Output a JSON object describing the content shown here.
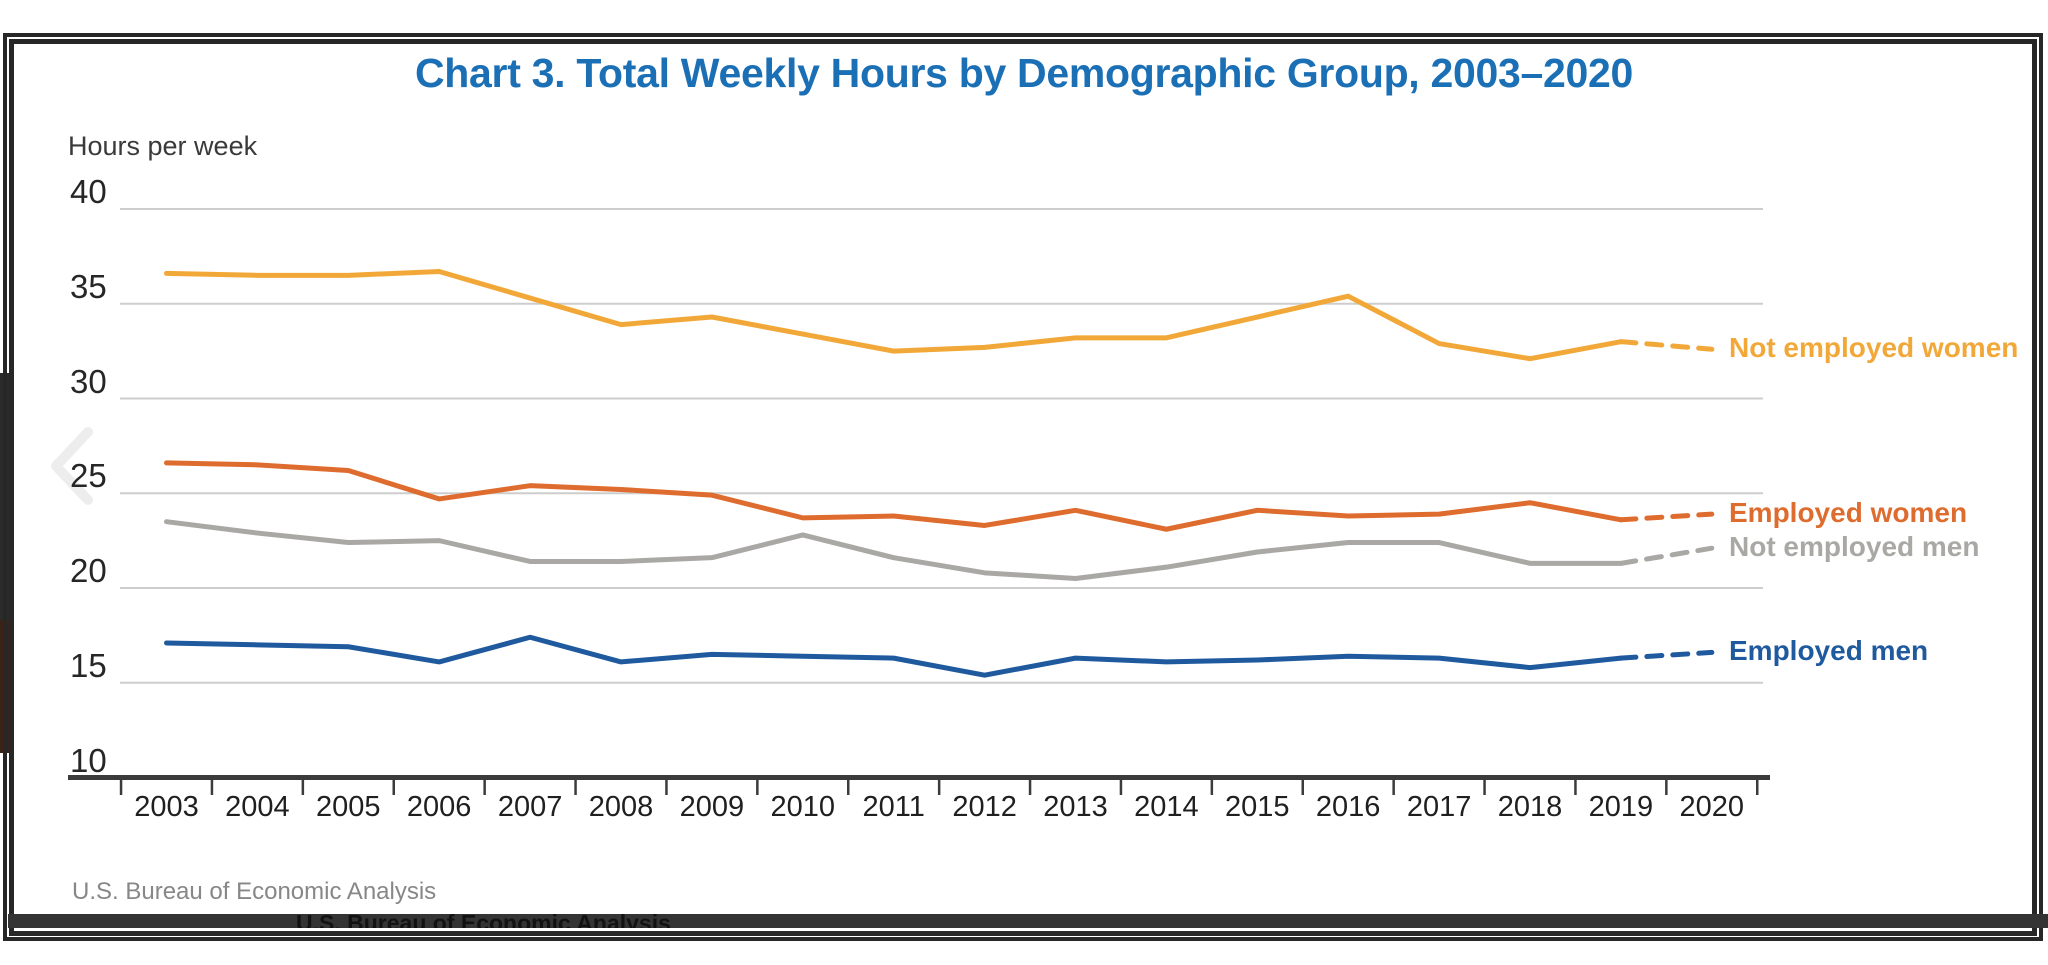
{
  "page": {
    "title": "Chart 3. Total Weekly Hours by Demographic Group, 2003–2020",
    "y_axis_title": "Hours per week",
    "source": "U.S. Bureau of Economic Analysis",
    "ghost_source": "U.S. Bureau of Economic Analysis",
    "title_color": "#1b6fb5",
    "prev_icon": "chevron-left"
  },
  "chart_data": {
    "type": "line",
    "title": "Chart 3. Total Weekly Hours by Demographic Group, 2003–2020",
    "xlabel": "",
    "ylabel": "Hours per week",
    "x": [
      2003,
      2004,
      2005,
      2006,
      2007,
      2008,
      2009,
      2010,
      2011,
      2012,
      2013,
      2014,
      2015,
      2016,
      2017,
      2018,
      2019,
      2020
    ],
    "y_ticks": [
      40,
      35,
      30,
      25,
      20,
      15,
      10
    ],
    "ylim": [
      10,
      40
    ],
    "grid": true,
    "legend_position": "right-of-line-ends",
    "projection_start_year": 2019,
    "projection_style": "dashed",
    "series": [
      {
        "name": "Not employed women",
        "color": "#F2A838",
        "values": [
          36.6,
          36.5,
          36.5,
          36.7,
          35.3,
          33.9,
          34.3,
          33.4,
          32.5,
          32.7,
          33.2,
          33.2,
          34.3,
          35.4,
          32.9,
          32.1,
          33.0,
          32.6
        ]
      },
      {
        "name": "Employed women",
        "color": "#DE6C2E",
        "values": [
          26.6,
          26.5,
          26.2,
          24.7,
          25.4,
          25.2,
          24.9,
          23.7,
          23.8,
          23.3,
          24.1,
          23.1,
          24.1,
          23.8,
          23.9,
          24.5,
          23.6,
          23.9
        ]
      },
      {
        "name": "Not employed men",
        "color": "#A9A8A5",
        "values": [
          23.5,
          22.9,
          22.4,
          22.5,
          21.4,
          21.4,
          21.6,
          22.8,
          21.6,
          20.8,
          20.5,
          21.1,
          21.9,
          22.4,
          22.4,
          21.3,
          21.3,
          22.1
        ]
      },
      {
        "name": "Employed men",
        "color": "#1F5A9E",
        "values": [
          17.1,
          17.0,
          16.9,
          16.1,
          17.4,
          16.1,
          16.5,
          16.4,
          16.3,
          15.4,
          16.3,
          16.1,
          16.2,
          16.4,
          16.3,
          15.8,
          16.3,
          16.6
        ]
      }
    ]
  }
}
